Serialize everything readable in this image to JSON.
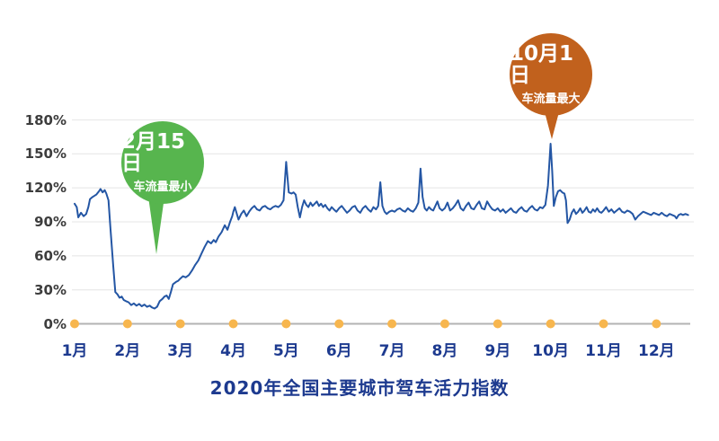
{
  "chart_data": {
    "type": "line",
    "title": "2020年全国主要城市驾车活力指数",
    "x_categories": [
      "1月",
      "2月",
      "3月",
      "4月",
      "5月",
      "6月",
      "7月",
      "8月",
      "9月",
      "10月",
      "11月",
      "12月"
    ],
    "y_ticks": [
      {
        "value": 0,
        "label": "0%"
      },
      {
        "value": 30,
        "label": "30%"
      },
      {
        "value": 60,
        "label": "60%"
      },
      {
        "value": 90,
        "label": "90%"
      },
      {
        "value": 120,
        "label": "120%"
      },
      {
        "value": 150,
        "label": "150%"
      },
      {
        "value": 180,
        "label": "180%"
      }
    ],
    "ylim": [
      0,
      180
    ],
    "grid": "horizontal-only",
    "legend": "none",
    "x_encoding": "months_from_jan1",
    "series": [
      {
        "points": [
          [
            0,
            106
          ],
          [
            0.04,
            103
          ],
          [
            0.07,
            94
          ],
          [
            0.12,
            98
          ],
          [
            0.17,
            95
          ],
          [
            0.22,
            97
          ],
          [
            0.26,
            103
          ],
          [
            0.29,
            110
          ],
          [
            0.34,
            112
          ],
          [
            0.41,
            114
          ],
          [
            0.46,
            117
          ],
          [
            0.49,
            119
          ],
          [
            0.53,
            116
          ],
          [
            0.57,
            118
          ],
          [
            0.6,
            115
          ],
          [
            0.64,
            109
          ],
          [
            0.68,
            83
          ],
          [
            0.73,
            51
          ],
          [
            0.77,
            28
          ],
          [
            0.81,
            26
          ],
          [
            0.85,
            23
          ],
          [
            0.89,
            24
          ],
          [
            0.93,
            21
          ],
          [
            0.97,
            20
          ],
          [
            1.02,
            19
          ],
          [
            1.07,
            16.5
          ],
          [
            1.12,
            18
          ],
          [
            1.17,
            16
          ],
          [
            1.22,
            17.5
          ],
          [
            1.27,
            15.5
          ],
          [
            1.32,
            17
          ],
          [
            1.37,
            15
          ],
          [
            1.42,
            16
          ],
          [
            1.46,
            14.5
          ],
          [
            1.51,
            13.5
          ],
          [
            1.56,
            15
          ],
          [
            1.61,
            20
          ],
          [
            1.66,
            22
          ],
          [
            1.7,
            24
          ],
          [
            1.74,
            25
          ],
          [
            1.78,
            22
          ],
          [
            1.82,
            28
          ],
          [
            1.86,
            35
          ],
          [
            1.92,
            37
          ],
          [
            1.96,
            38
          ],
          [
            2.0,
            40
          ],
          [
            2.05,
            42
          ],
          [
            2.1,
            41
          ],
          [
            2.16,
            43
          ],
          [
            2.22,
            47
          ],
          [
            2.28,
            52
          ],
          [
            2.34,
            56
          ],
          [
            2.4,
            62
          ],
          [
            2.46,
            68
          ],
          [
            2.52,
            73
          ],
          [
            2.58,
            71
          ],
          [
            2.63,
            74
          ],
          [
            2.67,
            72
          ],
          [
            2.72,
            77
          ],
          [
            2.78,
            81
          ],
          [
            2.84,
            87
          ],
          [
            2.89,
            83
          ],
          [
            2.94,
            90
          ],
          [
            2.98,
            95
          ],
          [
            3.0,
            99
          ],
          [
            3.03,
            103
          ],
          [
            3.1,
            92
          ],
          [
            3.15,
            97
          ],
          [
            3.2,
            100
          ],
          [
            3.25,
            95
          ],
          [
            3.3,
            99
          ],
          [
            3.35,
            102
          ],
          [
            3.4,
            104
          ],
          [
            3.45,
            101
          ],
          [
            3.5,
            100
          ],
          [
            3.55,
            103
          ],
          [
            3.6,
            104
          ],
          [
            3.65,
            102
          ],
          [
            3.7,
            101
          ],
          [
            3.75,
            103
          ],
          [
            3.8,
            104
          ],
          [
            3.85,
            103
          ],
          [
            3.9,
            105
          ],
          [
            3.95,
            109
          ],
          [
            4.0,
            143
          ],
          [
            4.05,
            116
          ],
          [
            4.1,
            115
          ],
          [
            4.14,
            116
          ],
          [
            4.18,
            114
          ],
          [
            4.22,
            103
          ],
          [
            4.26,
            94
          ],
          [
            4.3,
            103
          ],
          [
            4.34,
            109
          ],
          [
            4.38,
            105
          ],
          [
            4.42,
            103
          ],
          [
            4.46,
            107
          ],
          [
            4.5,
            104
          ],
          [
            4.54,
            106
          ],
          [
            4.58,
            108
          ],
          [
            4.62,
            104
          ],
          [
            4.66,
            106
          ],
          [
            4.7,
            103
          ],
          [
            4.74,
            105
          ],
          [
            4.78,
            102
          ],
          [
            4.82,
            100
          ],
          [
            4.86,
            103
          ],
          [
            4.9,
            101
          ],
          [
            4.95,
            99
          ],
          [
            5.0,
            102
          ],
          [
            5.05,
            104
          ],
          [
            5.1,
            101
          ],
          [
            5.15,
            98
          ],
          [
            5.2,
            100
          ],
          [
            5.25,
            103
          ],
          [
            5.3,
            104
          ],
          [
            5.35,
            100
          ],
          [
            5.4,
            98
          ],
          [
            5.45,
            102
          ],
          [
            5.5,
            104
          ],
          [
            5.55,
            101
          ],
          [
            5.6,
            99
          ],
          [
            5.65,
            103
          ],
          [
            5.7,
            101
          ],
          [
            5.74,
            104
          ],
          [
            5.78,
            125
          ],
          [
            5.82,
            104
          ],
          [
            5.86,
            99
          ],
          [
            5.9,
            97
          ],
          [
            5.95,
            99
          ],
          [
            6.0,
            100
          ],
          [
            6.05,
            99
          ],
          [
            6.1,
            101
          ],
          [
            6.15,
            102
          ],
          [
            6.2,
            100
          ],
          [
            6.25,
            99
          ],
          [
            6.3,
            102
          ],
          [
            6.35,
            100
          ],
          [
            6.4,
            99
          ],
          [
            6.45,
            102
          ],
          [
            6.5,
            107
          ],
          [
            6.54,
            137
          ],
          [
            6.58,
            112
          ],
          [
            6.62,
            102
          ],
          [
            6.66,
            100
          ],
          [
            6.7,
            103
          ],
          [
            6.74,
            101
          ],
          [
            6.78,
            100
          ],
          [
            6.82,
            104
          ],
          [
            6.86,
            108
          ],
          [
            6.9,
            102
          ],
          [
            6.95,
            100
          ],
          [
            7.0,
            102
          ],
          [
            7.05,
            107
          ],
          [
            7.1,
            100
          ],
          [
            7.15,
            102
          ],
          [
            7.2,
            105
          ],
          [
            7.25,
            109
          ],
          [
            7.3,
            102
          ],
          [
            7.35,
            100
          ],
          [
            7.4,
            104
          ],
          [
            7.45,
            107
          ],
          [
            7.5,
            102
          ],
          [
            7.55,
            101
          ],
          [
            7.6,
            105
          ],
          [
            7.65,
            108
          ],
          [
            7.7,
            102
          ],
          [
            7.75,
            101
          ],
          [
            7.8,
            108
          ],
          [
            7.85,
            104
          ],
          [
            7.9,
            101
          ],
          [
            7.95,
            100
          ],
          [
            8.0,
            102
          ],
          [
            8.05,
            99
          ],
          [
            8.1,
            101
          ],
          [
            8.15,
            98
          ],
          [
            8.2,
            100
          ],
          [
            8.25,
            102
          ],
          [
            8.3,
            99
          ],
          [
            8.35,
            98
          ],
          [
            8.4,
            101
          ],
          [
            8.45,
            103
          ],
          [
            8.5,
            100
          ],
          [
            8.55,
            99
          ],
          [
            8.6,
            102
          ],
          [
            8.65,
            104
          ],
          [
            8.7,
            101
          ],
          [
            8.75,
            100
          ],
          [
            8.8,
            103
          ],
          [
            8.85,
            102
          ],
          [
            8.9,
            105
          ],
          [
            8.95,
            122
          ],
          [
            9.0,
            159
          ],
          [
            9.03,
            135
          ],
          [
            9.06,
            104
          ],
          [
            9.1,
            112
          ],
          [
            9.14,
            117
          ],
          [
            9.18,
            118
          ],
          [
            9.22,
            116
          ],
          [
            9.26,
            115
          ],
          [
            9.29,
            109
          ],
          [
            9.32,
            89
          ],
          [
            9.36,
            92
          ],
          [
            9.4,
            98
          ],
          [
            9.44,
            101
          ],
          [
            9.48,
            97
          ],
          [
            9.52,
            99
          ],
          [
            9.56,
            102
          ],
          [
            9.6,
            98
          ],
          [
            9.64,
            100
          ],
          [
            9.68,
            103
          ],
          [
            9.72,
            99
          ],
          [
            9.76,
            98
          ],
          [
            9.8,
            101
          ],
          [
            9.84,
            99
          ],
          [
            9.88,
            102
          ],
          [
            9.92,
            99
          ],
          [
            9.96,
            98
          ],
          [
            10.0,
            100
          ],
          [
            10.05,
            103
          ],
          [
            10.1,
            99
          ],
          [
            10.15,
            101
          ],
          [
            10.2,
            98
          ],
          [
            10.25,
            100
          ],
          [
            10.3,
            102
          ],
          [
            10.35,
            99
          ],
          [
            10.4,
            98
          ],
          [
            10.45,
            100
          ],
          [
            10.5,
            99
          ],
          [
            10.55,
            97
          ],
          [
            10.6,
            92
          ],
          [
            10.65,
            95
          ],
          [
            10.7,
            97
          ],
          [
            10.75,
            99
          ],
          [
            10.8,
            98
          ],
          [
            10.85,
            97
          ],
          [
            10.9,
            96
          ],
          [
            10.95,
            98
          ],
          [
            11.0,
            97
          ],
          [
            11.05,
            96
          ],
          [
            11.1,
            98
          ],
          [
            11.15,
            96
          ],
          [
            11.2,
            95
          ],
          [
            11.25,
            97
          ],
          [
            11.3,
            96
          ],
          [
            11.35,
            95
          ],
          [
            11.38,
            93
          ],
          [
            11.42,
            96
          ],
          [
            11.46,
            97
          ],
          [
            11.5,
            96
          ],
          [
            11.55,
            97
          ],
          [
            11.6,
            96
          ]
        ]
      }
    ],
    "annotations": [
      {
        "date": "2月15日",
        "label": "车流量最小",
        "color": "#57b54e",
        "anchor_month": 1.51,
        "anchor_value": 13.5
      },
      {
        "date": "10月1日",
        "label": "车流量最大",
        "color": "#c1611d",
        "anchor_month": 9.0,
        "anchor_value": 159
      }
    ],
    "colors": {
      "line": "#2456a4",
      "grid": "#ebebeb",
      "axis": "#b3b3b3",
      "month_dot": "#f7b64e",
      "month_label": "#1d3a8f",
      "title": "#1d3a8f",
      "y_label": "#3d3d3d"
    }
  }
}
